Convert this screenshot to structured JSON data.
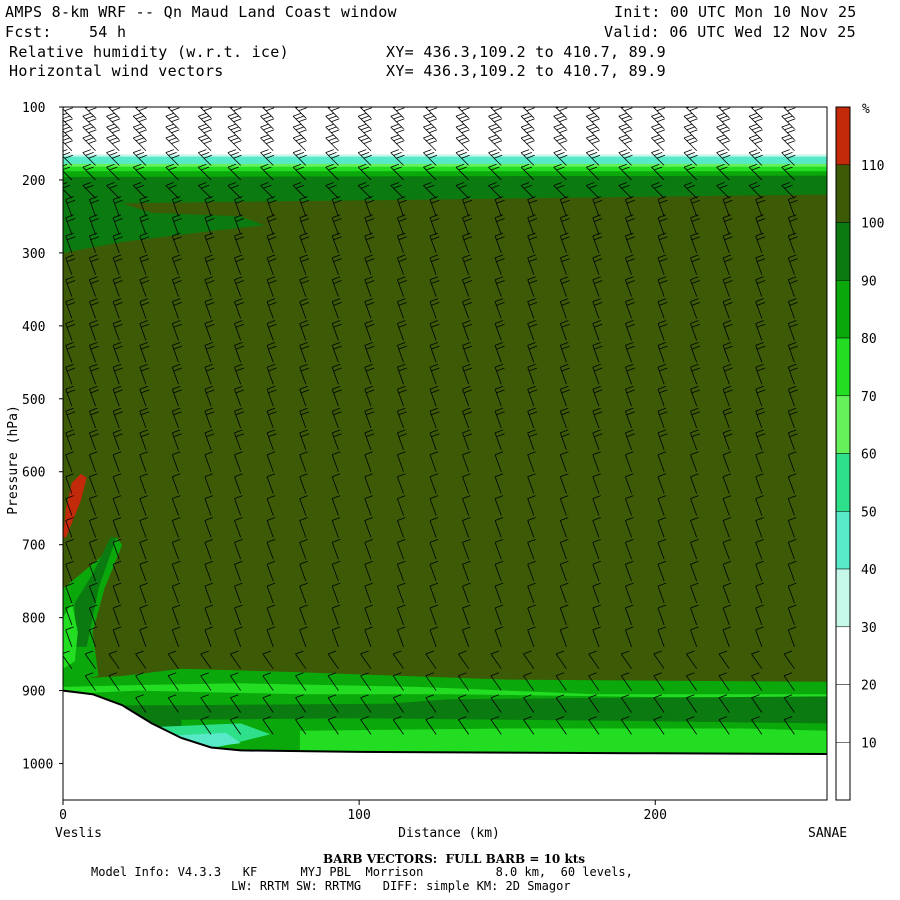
{
  "header": {
    "line1_left": "AMPS 8-km WRF -- Qn Maud Land Coast window",
    "line1_right": "Init: 00 UTC Mon 10 Nov 25",
    "line2_left": "Fcst:    54 h",
    "line2_right": "Valid: 06 UTC Wed 12 Nov 25",
    "line3_left": "Relative humidity (w.r.t. ice)",
    "line3_mid": "XY= 436.3,109.2 to 410.7, 89.9",
    "line4_left": "Horizontal wind vectors",
    "line4_mid": "XY= 436.3,109.2 to 410.7, 89.9"
  },
  "footer": {
    "barb_note": "BARB VECTORS:  FULL BARB = 10 kts",
    "model_info": "Model Info: V4.3.3   KF      MYJ PBL  Morrison          8.0 km,  60 levels,",
    "model_info2": "LW: RRTM SW: RRTMG   DIFF: simple KM: 2D Smagor"
  },
  "colors": {
    "c110": "#c22a0a",
    "c100": "#3d5a07",
    "c90": "#0b7a10",
    "c80": "#0aa80a",
    "c70": "#22dd22",
    "c60": "#66f05a",
    "c50": "#2ee08a",
    "c40": "#58eac8",
    "c30": "#c6f8ea",
    "white": "#ffffff"
  },
  "chart_data": {
    "type": "heatmap",
    "title": "Relative humidity (w.r.t. ice)",
    "xlabel": "Distance (km)",
    "ylabel": "Pressure (hPa)",
    "x_range": [
      0,
      258
    ],
    "y_range": [
      100,
      1050
    ],
    "y_inverted": true,
    "x_ticks": [
      0,
      100,
      200
    ],
    "y_ticks": [
      100,
      200,
      300,
      400,
      500,
      600,
      700,
      800,
      900,
      1000
    ],
    "x_start_label": "Veslis",
    "x_end_label": "SANAE",
    "colorbar": {
      "unit": "%",
      "levels": [
        10,
        20,
        30,
        40,
        50,
        60,
        70,
        80,
        90,
        100,
        110
      ]
    },
    "regions": [
      {
        "rh": "100-110",
        "extent": "most of the troposphere from about 230 hPa to 910 hPa"
      },
      {
        "rh": "90-100",
        "extent": "band 200-230 hPa, tongue near 650-800 hPa at x 5-20 km, boundary layer 900-960 hPa"
      },
      {
        "rh": "70-90",
        "extent": "near 200 hPa and in the boundary layer above terrain"
      },
      {
        "rh": "30-60",
        "extent": "thin layer near 170-180 hPa and above terrain at x 30-60 km"
      },
      {
        "rh": "0-30",
        "extent": "above about 165 hPa"
      },
      {
        "rh": ">110",
        "extent": "small patch near x 0-8 km, 600-690 hPa"
      }
    ],
    "terrain_surface": {
      "x_km": [
        0,
        10,
        20,
        30,
        40,
        50,
        60,
        80,
        100,
        150,
        200,
        258
      ],
      "p_hPa": [
        900,
        905,
        920,
        945,
        965,
        978,
        982,
        983,
        984,
        985,
        986,
        987
      ]
    },
    "wind": {
      "type": "barbs",
      "note": "full barb = 10 kts",
      "column_x_km": [
        3,
        11,
        19,
        28,
        39,
        50,
        60,
        71,
        82,
        93,
        104,
        115,
        126,
        137,
        148,
        159,
        170,
        181,
        192,
        203,
        214,
        225,
        236,
        247
      ],
      "levels_hPa": [
        115,
        130,
        145,
        160,
        180,
        200,
        225,
        250,
        275,
        300,
        330,
        360,
        390,
        420,
        450,
        480,
        510,
        540,
        570,
        600,
        630,
        660,
        690,
        720,
        750,
        780,
        810,
        840,
        870,
        900,
        930,
        960
      ]
    }
  }
}
